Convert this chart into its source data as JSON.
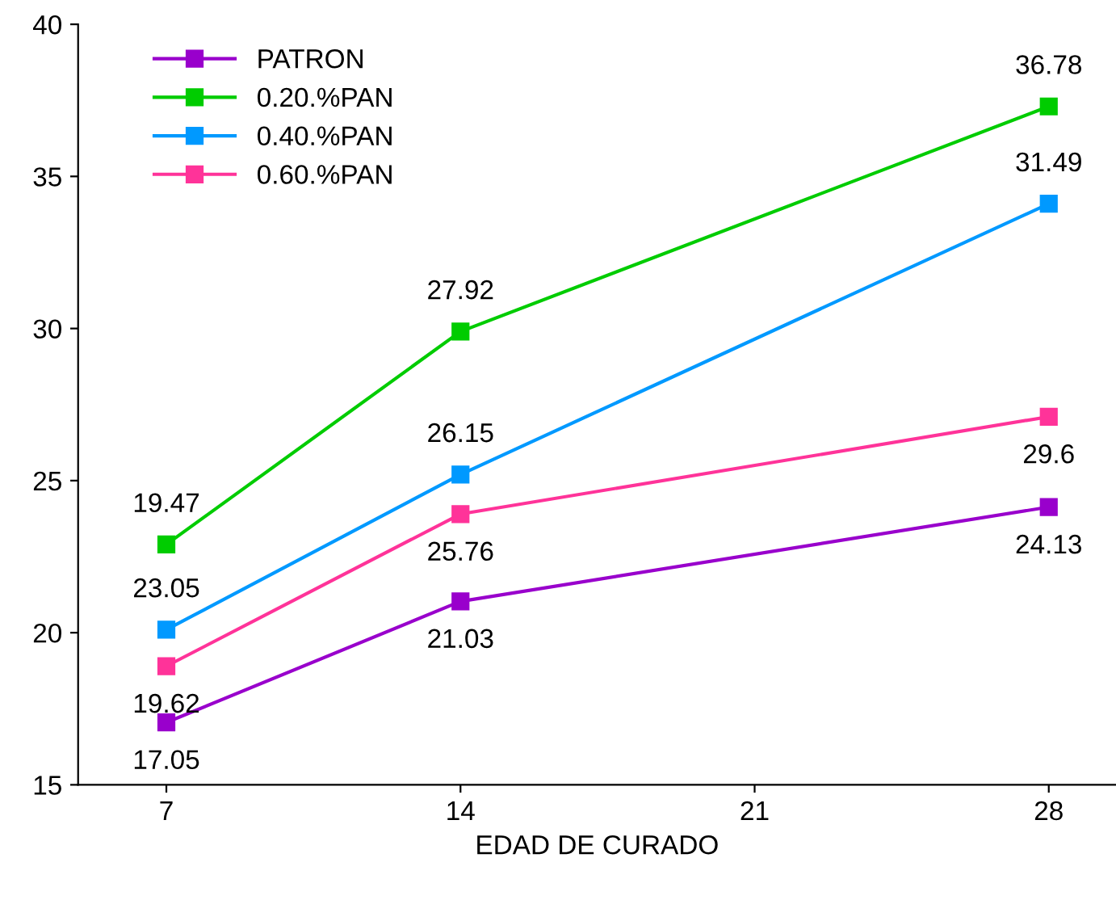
{
  "chart_data": {
    "type": "line",
    "xlabel": "EDAD DE CURADO",
    "x": [
      7,
      14,
      28
    ],
    "xlim": [
      4.9,
      29.6
    ],
    "xticks": [
      7,
      14,
      21,
      28
    ],
    "ylim": [
      15,
      40
    ],
    "yticks": [
      15,
      20,
      25,
      30,
      35,
      40
    ],
    "marker": "square",
    "line_style": "solid",
    "legend": "top left",
    "grid": false,
    "series": [
      {
        "name": "PATRON",
        "color": "#9900cc",
        "values": [
          17.05,
          21.03,
          24.13
        ],
        "value_labels": [
          "17.05",
          "21.03",
          "24.13"
        ]
      },
      {
        "name": "0.20.%PAN",
        "color": "#00cc00",
        "values": [
          22.9,
          29.9,
          37.3
        ]
      },
      {
        "name": "0.40.%PAN",
        "color": "#0099ff",
        "values": [
          20.1,
          25.2,
          34.1
        ]
      },
      {
        "name": "0.60.%PAN",
        "color": "#ff3399",
        "values": [
          18.9,
          23.9,
          27.1
        ]
      }
    ],
    "annotations": [
      {
        "text": "19.47",
        "x": 7,
        "y": 22.9
      },
      {
        "text": "27.92",
        "x": 14,
        "y": 29.9
      },
      {
        "text": "36.78",
        "x": 28,
        "y": 37.3
      },
      {
        "text": "23.05",
        "x": 7,
        "y": 20.1
      },
      {
        "text": "26.15",
        "x": 14,
        "y": 25.2
      },
      {
        "text": "31.49",
        "x": 28,
        "y": 34.1
      },
      {
        "text": "19.62",
        "x": 7,
        "y": 18.9
      },
      {
        "text": "25.76",
        "x": 14,
        "y": 23.9
      },
      {
        "text": "29.6",
        "x": 28,
        "y": 27.1
      }
    ]
  }
}
